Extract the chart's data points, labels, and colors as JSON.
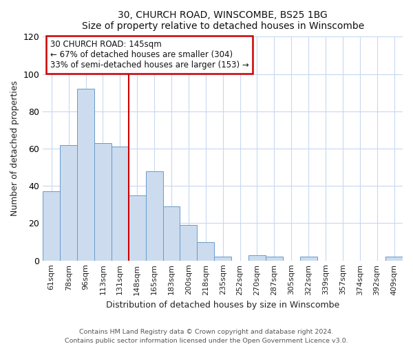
{
  "title": "30, CHURCH ROAD, WINSCOMBE, BS25 1BG",
  "subtitle": "Size of property relative to detached houses in Winscombe",
  "xlabel": "Distribution of detached houses by size in Winscombe",
  "ylabel": "Number of detached properties",
  "bar_labels": [
    "61sqm",
    "78sqm",
    "96sqm",
    "113sqm",
    "131sqm",
    "148sqm",
    "165sqm",
    "183sqm",
    "200sqm",
    "218sqm",
    "235sqm",
    "252sqm",
    "270sqm",
    "287sqm",
    "305sqm",
    "322sqm",
    "339sqm",
    "357sqm",
    "374sqm",
    "392sqm",
    "409sqm"
  ],
  "bar_values": [
    37,
    62,
    92,
    63,
    61,
    35,
    48,
    29,
    19,
    10,
    2,
    0,
    3,
    2,
    0,
    2,
    0,
    0,
    0,
    0,
    2
  ],
  "bar_color": "#ccdcee",
  "bar_edge_color": "#6699cc",
  "ylim": [
    0,
    120
  ],
  "yticks": [
    0,
    20,
    40,
    60,
    80,
    100,
    120
  ],
  "red_line_index": 5,
  "annotation_title": "30 CHURCH ROAD: 145sqm",
  "annotation_line1": "← 67% of detached houses are smaller (304)",
  "annotation_line2": "33% of semi-detached houses are larger (153) →",
  "annotation_box_color": "#ffffff",
  "annotation_box_edge_color": "#cc0000",
  "red_line_color": "#cc0000",
  "plot_bg_color": "#ffffff",
  "fig_bg_color": "#ffffff",
  "grid_color": "#c8d8ee",
  "footer1": "Contains HM Land Registry data © Crown copyright and database right 2024.",
  "footer2": "Contains public sector information licensed under the Open Government Licence v3.0."
}
